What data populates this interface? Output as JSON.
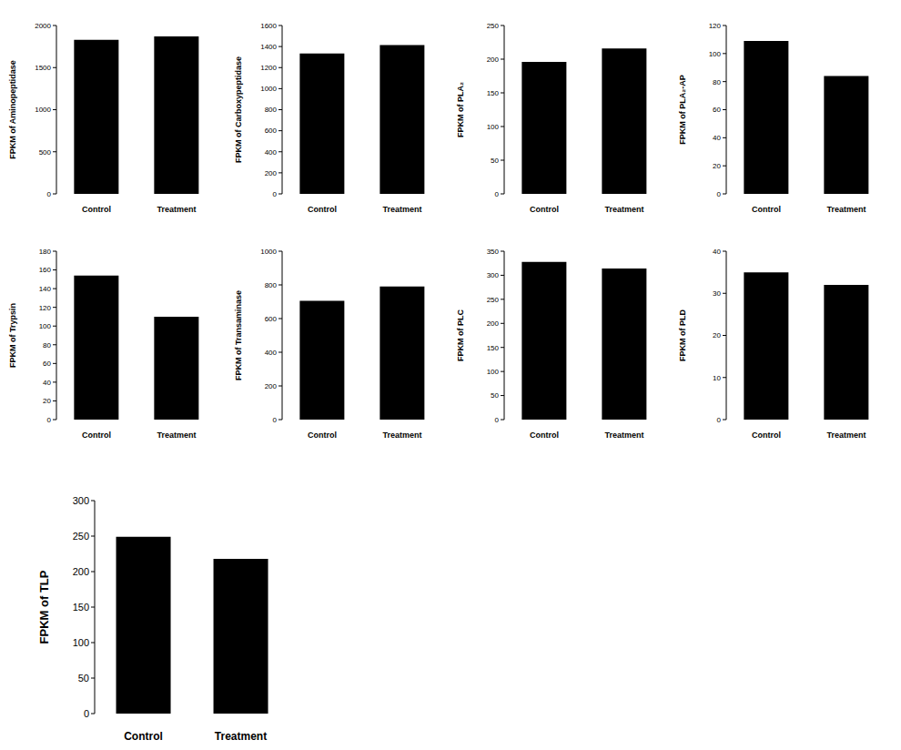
{
  "chart_data": [
    {
      "type": "bar",
      "y_label": "FPKM of Aminopeptidase",
      "categories": [
        "Control",
        "Treatment"
      ],
      "values": [
        1830,
        1870
      ],
      "color": "#000000",
      "ylim": [
        0,
        2000
      ],
      "yticks": [
        0,
        500,
        1000,
        1500,
        2000
      ]
    },
    {
      "type": "bar",
      "y_label": "FPKM of Carboxypeptidase",
      "categories": [
        "Control",
        "Treatment"
      ],
      "values": [
        1335,
        1415
      ],
      "color": "#000000",
      "ylim": [
        0,
        1600
      ],
      "yticks": [
        0,
        200,
        400,
        600,
        800,
        1000,
        1200,
        1400,
        1600
      ]
    },
    {
      "type": "bar",
      "y_label": "FPKM of PLA₂",
      "categories": [
        "Control",
        "Treatment"
      ],
      "values": [
        196,
        216
      ],
      "color": "#000000",
      "ylim": [
        0,
        250
      ],
      "yticks": [
        0,
        50,
        100,
        150,
        200,
        250
      ]
    },
    {
      "type": "bar",
      "y_label": "FPKM of PLA₂-AP",
      "categories": [
        "Control",
        "Treatment"
      ],
      "values": [
        109,
        84
      ],
      "color": "#000000",
      "ylim": [
        0,
        120
      ],
      "yticks": [
        0,
        20,
        40,
        60,
        80,
        100,
        120
      ]
    },
    {
      "type": "bar",
      "y_label": "FPKM of Trypsin",
      "categories": [
        "Control",
        "Treatment"
      ],
      "values": [
        154,
        110
      ],
      "color": "#000000",
      "ylim": [
        0,
        180
      ],
      "yticks": [
        0,
        20,
        40,
        60,
        80,
        100,
        120,
        140,
        160,
        180
      ]
    },
    {
      "type": "bar",
      "y_label": "FPKM of Transaminase",
      "categories": [
        "Control",
        "Treatment"
      ],
      "values": [
        705,
        790
      ],
      "color": "#000000",
      "ylim": [
        0,
        1000
      ],
      "yticks": [
        0,
        200,
        400,
        600,
        800,
        1000
      ]
    },
    {
      "type": "bar",
      "y_label": "FPKM of PLC",
      "categories": [
        "Control",
        "Treatment"
      ],
      "values": [
        328,
        314
      ],
      "color": "#000000",
      "ylim": [
        0,
        350
      ],
      "yticks": [
        0,
        50,
        100,
        150,
        200,
        250,
        300,
        350
      ]
    },
    {
      "type": "bar",
      "y_label": "FPKM of PLD",
      "categories": [
        "Control",
        "Treatment"
      ],
      "values": [
        35,
        32
      ],
      "color": "#000000",
      "ylim": [
        0,
        40
      ],
      "yticks": [
        0,
        10,
        20,
        30,
        40
      ]
    },
    {
      "type": "bar",
      "y_label": "FPKM of TLP",
      "categories": [
        "Control",
        "Treatment"
      ],
      "values": [
        249,
        218
      ],
      "color": "#000000",
      "ylim": [
        0,
        300
      ],
      "yticks": [
        0,
        50,
        100,
        150,
        200,
        250,
        300
      ]
    }
  ]
}
